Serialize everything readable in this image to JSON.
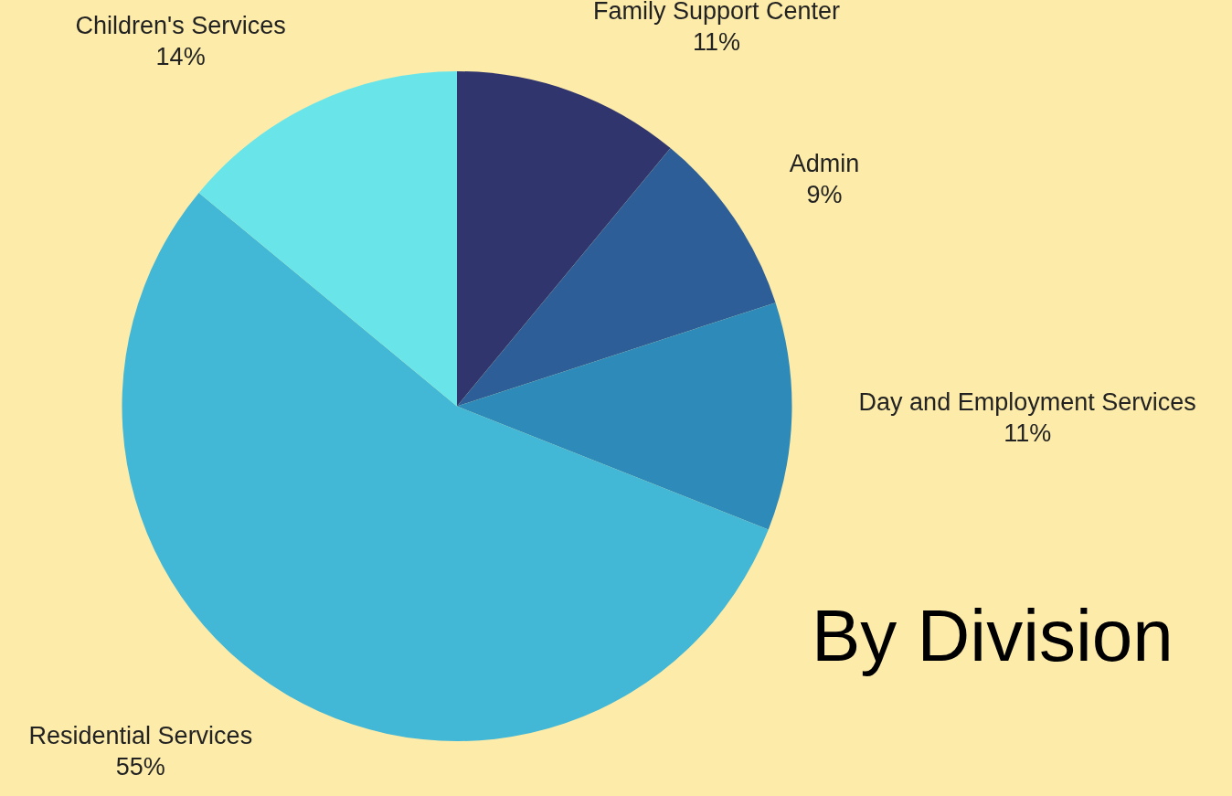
{
  "chart_data": {
    "type": "pie",
    "title": "By Division",
    "categories": [
      "Family Support Center",
      "Admin",
      "Day and Employment Services",
      "Residential Services",
      "Children's Services"
    ],
    "values": [
      11,
      9,
      11,
      55,
      14
    ],
    "value_labels": [
      "11%",
      "9%",
      "11%",
      "55%",
      "14%"
    ],
    "colors": [
      "#31356e",
      "#2e5e97",
      "#2e8ab8",
      "#42b7d6",
      "#69e5e9"
    ],
    "legend": false
  }
}
